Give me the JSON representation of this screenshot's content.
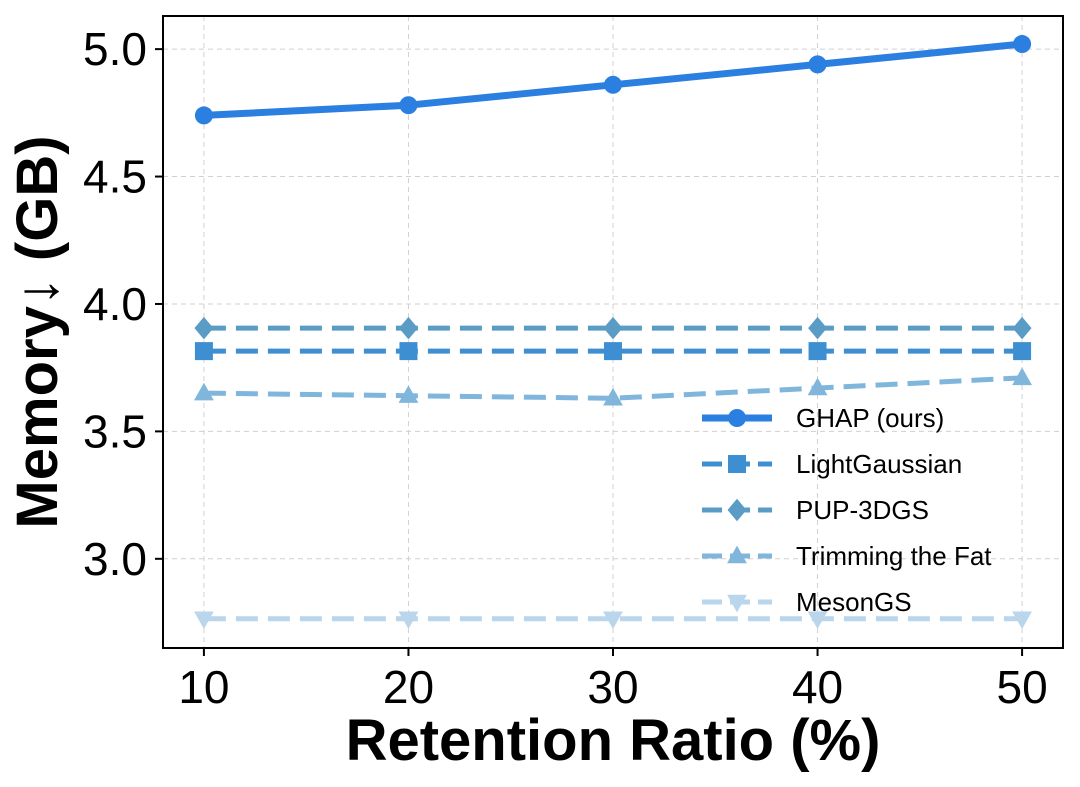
{
  "chart_data": {
    "type": "line",
    "title": "",
    "xlabel": "Retention Ratio (%)",
    "ylabel": "Memory↓ (GB)",
    "x": [
      10,
      20,
      30,
      40,
      50
    ],
    "xticks": [
      "10",
      "20",
      "30",
      "40",
      "50"
    ],
    "xlim": [
      8,
      52
    ],
    "ylim": [
      2.65,
      5.13
    ],
    "yticks": [
      "3.0",
      "3.5",
      "4.0",
      "4.5",
      "5.0"
    ],
    "grid": true,
    "legend_position": "bottom-right",
    "series": [
      {
        "name": "GHAP (ours)",
        "values": [
          4.74,
          4.78,
          4.86,
          4.94,
          5.02
        ],
        "color": "#2a7fe0",
        "marker": "circle",
        "dash": "solid"
      },
      {
        "name": "LightGaussian",
        "values": [
          3.815,
          3.815,
          3.815,
          3.815,
          3.815
        ],
        "color": "#3d8fd1",
        "marker": "square",
        "dash": "dashed"
      },
      {
        "name": "PUP-3DGS",
        "values": [
          3.905,
          3.905,
          3.905,
          3.905,
          3.905
        ],
        "color": "#5a9cc5",
        "marker": "diamond",
        "dash": "dashed"
      },
      {
        "name": "Trimming the Fat",
        "values": [
          3.65,
          3.64,
          3.63,
          3.67,
          3.71
        ],
        "color": "#80b6dc",
        "marker": "triangle-up",
        "dash": "dashed"
      },
      {
        "name": "MesonGS",
        "values": [
          2.765,
          2.765,
          2.765,
          2.765,
          2.765
        ],
        "color": "#b9d6ec",
        "marker": "triangle-down",
        "dash": "dashed"
      }
    ]
  }
}
